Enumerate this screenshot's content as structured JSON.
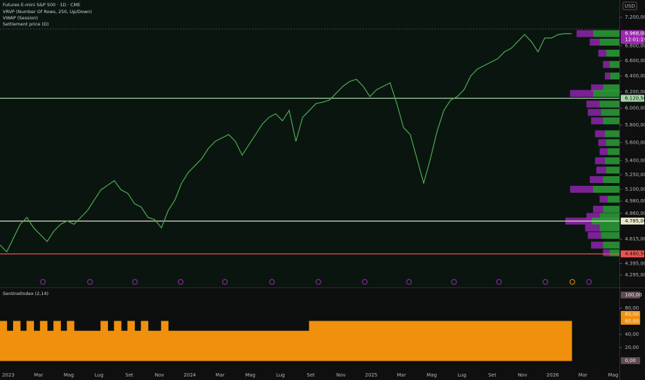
{
  "header": {
    "symbol": "Futures E-mini S&P 500 · 1D · CME",
    "indicators": [
      "VRVP (Number Of Rows, 250, Up/Down)",
      "VWAP (Session)",
      "Settlement price (D)"
    ],
    "currency": "USD"
  },
  "x_axis_labels": [
    "2023",
    "Mar",
    "Mag",
    "Lug",
    "Set",
    "Nov",
    "2024",
    "Mar",
    "Mag",
    "Lug",
    "Set",
    "Nov",
    "2025",
    "Mar",
    "Mag",
    "Lug",
    "Set",
    "Nov",
    "2026",
    "Mar",
    "Mag"
  ],
  "chart_data": [
    {
      "type": "line",
      "log_scale": true,
      "color": "#4caf50",
      "values": [
        4561,
        4499,
        4625,
        4754,
        4820,
        4721,
        4657,
        4593,
        4689,
        4754,
        4787,
        4754,
        4820,
        4887,
        4990,
        5094,
        5141,
        5189,
        5094,
        5059,
        4955,
        4921,
        4820,
        4800,
        4721,
        4887,
        4990,
        5163,
        5275,
        5349,
        5423,
        5537,
        5614,
        5653,
        5692,
        5614,
        5461,
        5575,
        5692,
        5811,
        5892,
        5933,
        5851,
        5974,
        5614,
        5892,
        5974,
        6057,
        6073,
        6099,
        6184,
        6270,
        6331,
        6358,
        6270,
        6142,
        6227,
        6270,
        6314,
        6057,
        5771,
        5692,
        5423,
        5163,
        5423,
        5731,
        5974,
        6099,
        6142,
        6227,
        6402,
        6491,
        6536,
        6581,
        6626,
        6718,
        6765,
        6859,
        6955,
        6859,
        6718,
        6907,
        6907,
        6955,
        6968,
        6968
      ],
      "ylim": [
        4295,
        7200
      ],
      "yticks": [
        {
          "value": 7200,
          "label": "7.200,00"
        },
        {
          "value": 6800,
          "label": "6.800,00"
        },
        {
          "value": 6600,
          "label": "6.600,00"
        },
        {
          "value": 6400,
          "label": "6.400,00"
        },
        {
          "value": 6200,
          "label": "6.200,00"
        },
        {
          "value": 6000,
          "label": "6.000,00"
        },
        {
          "value": 5800,
          "label": "5.800,00"
        },
        {
          "value": 5600,
          "label": "5.600,00"
        },
        {
          "value": 5400,
          "label": "5.400,00"
        },
        {
          "value": 5250,
          "label": "5.250,00"
        },
        {
          "value": 5100,
          "label": "5.100,00"
        },
        {
          "value": 4980,
          "label": "4.980,00"
        },
        {
          "value": 4860,
          "label": "4.860,00"
        },
        {
          "value": 4615,
          "label": "4.615,00"
        },
        {
          "value": 4395,
          "label": "4.395,00"
        },
        {
          "value": 4295,
          "label": "4.295,00"
        }
      ],
      "last_price": {
        "value": 6968,
        "label": "6.968,00",
        "color": "#9c27b0"
      },
      "countdown": "12:01:19",
      "price_lines": [
        {
          "value": 6120.5,
          "label": "6.120,50",
          "color": "#a5d6a7"
        },
        {
          "value": 4785,
          "label": "4.785,00",
          "color": "#e6e6c8"
        },
        {
          "value": 4480.5,
          "label": "4.480,50",
          "color": "#ef5350"
        }
      ],
      "volume_profile": {
        "up_color": "#2e9e3a",
        "down_color": "#8e24aa",
        "price": [
          6968,
          6850,
          6700,
          6550,
          6400,
          6250,
          6180,
          6050,
          5950,
          5850,
          5700,
          5600,
          5500,
          5400,
          5300,
          5200,
          5100,
          5000,
          4900,
          4830,
          4785,
          4720,
          4650,
          4560,
          4490
        ],
        "up": [
          40,
          30,
          20,
          15,
          14,
          25,
          40,
          30,
          28,
          25,
          22,
          20,
          18,
          22,
          20,
          25,
          40,
          18,
          25,
          30,
          42,
          30,
          28,
          25,
          15
        ],
        "down": [
          25,
          15,
          12,
          10,
          8,
          18,
          35,
          20,
          20,
          18,
          15,
          12,
          12,
          15,
          15,
          20,
          35,
          12,
          15,
          20,
          40,
          22,
          20,
          18,
          10
        ]
      }
    },
    {
      "type": "area",
      "title": "SentinelIndex (2,14)",
      "color": "#f0900c",
      "values": [
        60,
        45,
        60,
        45,
        60,
        45,
        60,
        45,
        60,
        45,
        60,
        45,
        45,
        45,
        45,
        60,
        45,
        60,
        45,
        60,
        45,
        60,
        45,
        45,
        60,
        45,
        45,
        45,
        45,
        45,
        45,
        45,
        45,
        45,
        45,
        45,
        45,
        45,
        45,
        45,
        45,
        45,
        45,
        45,
        45,
        45,
        60,
        60,
        60,
        60,
        60,
        60,
        60,
        60,
        60,
        60,
        60,
        60,
        60,
        60,
        60,
        60,
        60,
        60,
        60,
        60,
        60,
        60,
        60,
        60,
        60,
        60,
        60,
        60,
        60,
        60,
        60,
        60,
        60,
        60,
        60,
        60,
        60,
        60,
        60,
        60
      ],
      "ylim": [
        0,
        100
      ],
      "yticks": [
        {
          "value": 80,
          "label": "80,00"
        },
        {
          "value": 40,
          "label": "40,00"
        },
        {
          "value": 20,
          "label": "20,00"
        }
      ],
      "markers": [
        {
          "value": 100,
          "label": "100,00",
          "color": "#f8bbd0"
        },
        {
          "value": 60,
          "label": "60,00",
          "color": "#f0900c"
        },
        {
          "value": 60,
          "label": "60,00",
          "color": "#f0900c"
        },
        {
          "value": 0,
          "label": "0,00",
          "color": "#f8bbd0"
        }
      ]
    }
  ]
}
